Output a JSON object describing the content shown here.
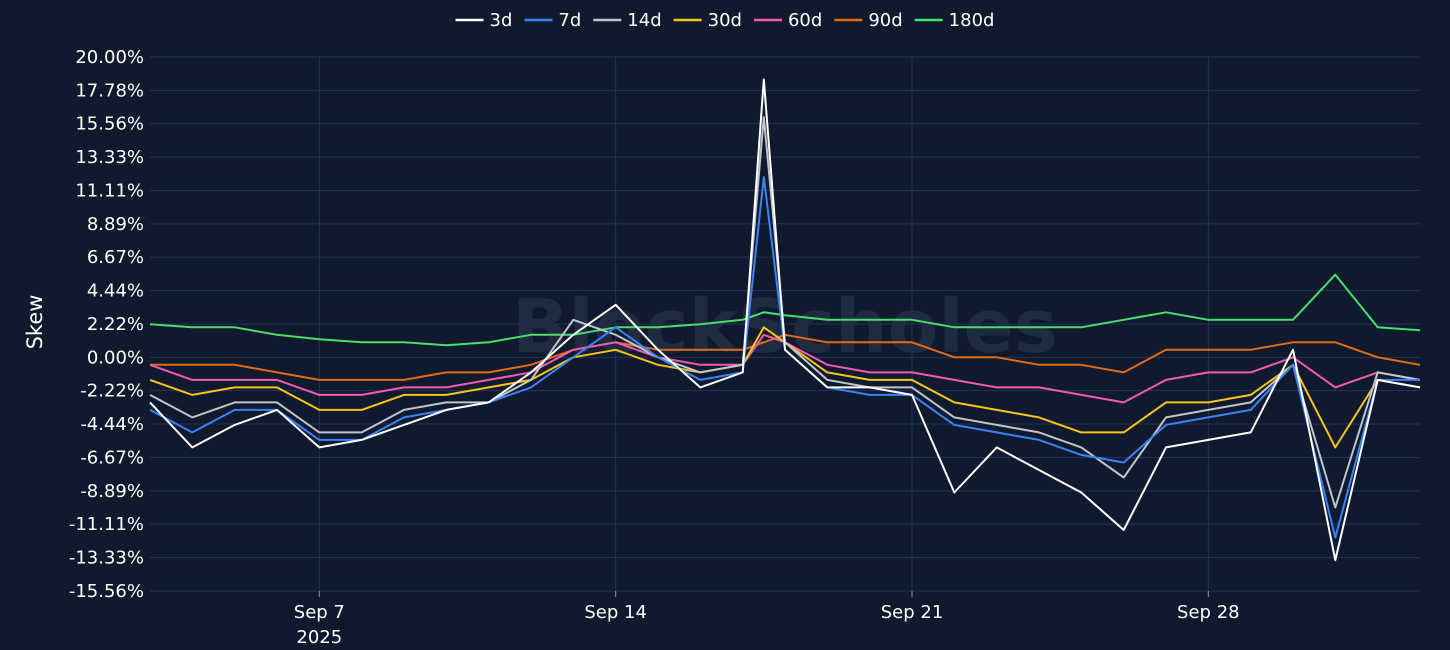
{
  "chart_data": {
    "type": "line",
    "title": "",
    "xlabel": "",
    "ylabel": "Skew",
    "watermark": "BlockScholes",
    "x_range": [
      "2025-09-03",
      "2025-10-03"
    ],
    "ylim": [
      -15.56,
      20.0
    ],
    "y_ticks": [
      "20.00%",
      "17.78%",
      "15.56%",
      "13.33%",
      "11.11%",
      "8.89%",
      "6.67%",
      "4.44%",
      "2.22%",
      "0.00%",
      "-2.22%",
      "-4.44%",
      "-6.67%",
      "-8.89%",
      "-11.11%",
      "-13.33%",
      "-15.56%"
    ],
    "x_ticks": [
      {
        "date": "2025-09-07",
        "label": "Sep 7",
        "sublabel": "2025"
      },
      {
        "date": "2025-09-14",
        "label": "Sep 14",
        "sublabel": ""
      },
      {
        "date": "2025-09-21",
        "label": "Sep 21",
        "sublabel": ""
      },
      {
        "date": "2025-09-28",
        "label": "Sep 28",
        "sublabel": ""
      }
    ],
    "grid": true,
    "legend_position": "top-center",
    "series": [
      {
        "name": "3d",
        "color": "#ffffff",
        "x": [
          "2025-09-03",
          "2025-09-04",
          "2025-09-05",
          "2025-09-06",
          "2025-09-07",
          "2025-09-08",
          "2025-09-09",
          "2025-09-10",
          "2025-09-11",
          "2025-09-12",
          "2025-09-13",
          "2025-09-14",
          "2025-09-15",
          "2025-09-16",
          "2025-09-17",
          "2025-09-17T12:00",
          "2025-09-18",
          "2025-09-19",
          "2025-09-20",
          "2025-09-21",
          "2025-09-22",
          "2025-09-23",
          "2025-09-24",
          "2025-09-25",
          "2025-09-26",
          "2025-09-27",
          "2025-09-28",
          "2025-09-29",
          "2025-09-30",
          "2025-10-01",
          "2025-10-02",
          "2025-10-03"
        ],
        "values": [
          -3.0,
          -6.0,
          -4.5,
          -3.5,
          -6.0,
          -5.5,
          -4.5,
          -3.5,
          -3.0,
          -1.0,
          1.5,
          3.5,
          0.5,
          -2.0,
          -1.0,
          18.5,
          0.5,
          -2.0,
          -2.0,
          -2.5,
          -9.0,
          -6.0,
          -7.5,
          -9.0,
          -11.5,
          -6.0,
          -5.5,
          -5.0,
          0.5,
          -13.5,
          -1.5,
          -2.0
        ]
      },
      {
        "name": "7d",
        "color": "#3b82f6",
        "x": [
          "2025-09-03",
          "2025-09-04",
          "2025-09-05",
          "2025-09-06",
          "2025-09-07",
          "2025-09-08",
          "2025-09-09",
          "2025-09-10",
          "2025-09-11",
          "2025-09-12",
          "2025-09-13",
          "2025-09-14",
          "2025-09-15",
          "2025-09-16",
          "2025-09-17",
          "2025-09-17T12:00",
          "2025-09-18",
          "2025-09-19",
          "2025-09-20",
          "2025-09-21",
          "2025-09-22",
          "2025-09-23",
          "2025-09-24",
          "2025-09-25",
          "2025-09-26",
          "2025-09-27",
          "2025-09-28",
          "2025-09-29",
          "2025-09-30",
          "2025-10-01",
          "2025-10-02",
          "2025-10-03"
        ],
        "values": [
          -3.5,
          -5.0,
          -3.5,
          -3.5,
          -5.5,
          -5.5,
          -4.0,
          -3.5,
          -3.0,
          -2.0,
          0.0,
          2.0,
          0.0,
          -1.5,
          -1.0,
          12.0,
          0.5,
          -2.0,
          -2.5,
          -2.5,
          -4.5,
          -5.0,
          -5.5,
          -6.5,
          -7.0,
          -4.5,
          -4.0,
          -3.5,
          -0.5,
          -12.0,
          -1.5,
          -1.5
        ]
      },
      {
        "name": "14d",
        "color": "#c0c4cc",
        "x": [
          "2025-09-03",
          "2025-09-04",
          "2025-09-05",
          "2025-09-06",
          "2025-09-07",
          "2025-09-08",
          "2025-09-09",
          "2025-09-10",
          "2025-09-11",
          "2025-09-12",
          "2025-09-13",
          "2025-09-14",
          "2025-09-15",
          "2025-09-16",
          "2025-09-17",
          "2025-09-17T12:00",
          "2025-09-18",
          "2025-09-19",
          "2025-09-20",
          "2025-09-21",
          "2025-09-22",
          "2025-09-23",
          "2025-09-24",
          "2025-09-25",
          "2025-09-26",
          "2025-09-27",
          "2025-09-28",
          "2025-09-29",
          "2025-09-30",
          "2025-10-01",
          "2025-10-02",
          "2025-10-03"
        ],
        "values": [
          -2.5,
          -4.0,
          -3.0,
          -3.0,
          -5.0,
          -5.0,
          -3.5,
          -3.0,
          -3.0,
          -1.5,
          2.5,
          1.5,
          0.0,
          -1.0,
          -0.5,
          16.0,
          1.0,
          -1.5,
          -2.0,
          -2.0,
          -4.0,
          -4.5,
          -5.0,
          -6.0,
          -8.0,
          -4.0,
          -3.5,
          -3.0,
          -0.5,
          -10.0,
          -1.0,
          -1.5
        ]
      },
      {
        "name": "30d",
        "color": "#f5c518",
        "x": [
          "2025-09-03",
          "2025-09-04",
          "2025-09-05",
          "2025-09-06",
          "2025-09-07",
          "2025-09-08",
          "2025-09-09",
          "2025-09-10",
          "2025-09-11",
          "2025-09-12",
          "2025-09-13",
          "2025-09-14",
          "2025-09-15",
          "2025-09-16",
          "2025-09-17",
          "2025-09-17T12:00",
          "2025-09-18",
          "2025-09-19",
          "2025-09-20",
          "2025-09-21",
          "2025-09-22",
          "2025-09-23",
          "2025-09-24",
          "2025-09-25",
          "2025-09-26",
          "2025-09-27",
          "2025-09-28",
          "2025-09-29",
          "2025-09-30",
          "2025-10-01",
          "2025-10-02",
          "2025-10-03"
        ],
        "values": [
          -1.5,
          -2.5,
          -2.0,
          -2.0,
          -3.5,
          -3.5,
          -2.5,
          -2.5,
          -2.0,
          -1.5,
          0.0,
          0.5,
          -0.5,
          -1.0,
          -0.5,
          2.0,
          1.0,
          -1.0,
          -1.5,
          -1.5,
          -3.0,
          -3.5,
          -4.0,
          -5.0,
          -5.0,
          -3.0,
          -3.0,
          -2.5,
          -0.5,
          -6.0,
          -1.5,
          -2.0
        ]
      },
      {
        "name": "60d",
        "color": "#f25ab4",
        "x": [
          "2025-09-03",
          "2025-09-04",
          "2025-09-05",
          "2025-09-06",
          "2025-09-07",
          "2025-09-08",
          "2025-09-09",
          "2025-09-10",
          "2025-09-11",
          "2025-09-12",
          "2025-09-13",
          "2025-09-14",
          "2025-09-15",
          "2025-09-16",
          "2025-09-17",
          "2025-09-17T12:00",
          "2025-09-18",
          "2025-09-19",
          "2025-09-20",
          "2025-09-21",
          "2025-09-22",
          "2025-09-23",
          "2025-09-24",
          "2025-09-25",
          "2025-09-26",
          "2025-09-27",
          "2025-09-28",
          "2025-09-29",
          "2025-09-30",
          "2025-10-01",
          "2025-10-02",
          "2025-10-03"
        ],
        "values": [
          -0.5,
          -1.5,
          -1.5,
          -1.5,
          -2.5,
          -2.5,
          -2.0,
          -2.0,
          -1.5,
          -1.0,
          0.5,
          1.0,
          0.0,
          -0.5,
          -0.5,
          1.5,
          1.0,
          -0.5,
          -1.0,
          -1.0,
          -1.5,
          -2.0,
          -2.0,
          -2.5,
          -3.0,
          -1.5,
          -1.0,
          -1.0,
          0.0,
          -2.0,
          -1.0,
          -1.5
        ]
      },
      {
        "name": "90d",
        "color": "#e36b14",
        "x": [
          "2025-09-03",
          "2025-09-04",
          "2025-09-05",
          "2025-09-06",
          "2025-09-07",
          "2025-09-08",
          "2025-09-09",
          "2025-09-10",
          "2025-09-11",
          "2025-09-12",
          "2025-09-13",
          "2025-09-14",
          "2025-09-15",
          "2025-09-16",
          "2025-09-17",
          "2025-09-17T12:00",
          "2025-09-18",
          "2025-09-19",
          "2025-09-20",
          "2025-09-21",
          "2025-09-22",
          "2025-09-23",
          "2025-09-24",
          "2025-09-25",
          "2025-09-26",
          "2025-09-27",
          "2025-09-28",
          "2025-09-29",
          "2025-09-30",
          "2025-10-01",
          "2025-10-02",
          "2025-10-03"
        ],
        "values": [
          -0.5,
          -0.5,
          -0.5,
          -1.0,
          -1.5,
          -1.5,
          -1.5,
          -1.0,
          -1.0,
          -0.5,
          0.5,
          1.0,
          0.5,
          0.5,
          0.5,
          1.0,
          1.5,
          1.0,
          1.0,
          1.0,
          0.0,
          0.0,
          -0.5,
          -0.5,
          -1.0,
          0.5,
          0.5,
          0.5,
          1.0,
          1.0,
          0.0,
          -0.5
        ]
      },
      {
        "name": "180d",
        "color": "#4ade6a",
        "x": [
          "2025-09-03",
          "2025-09-04",
          "2025-09-05",
          "2025-09-06",
          "2025-09-07",
          "2025-09-08",
          "2025-09-09",
          "2025-09-10",
          "2025-09-11",
          "2025-09-12",
          "2025-09-13",
          "2025-09-14",
          "2025-09-15",
          "2025-09-16",
          "2025-09-17",
          "2025-09-17T12:00",
          "2025-09-18",
          "2025-09-19",
          "2025-09-20",
          "2025-09-21",
          "2025-09-22",
          "2025-09-23",
          "2025-09-24",
          "2025-09-25",
          "2025-09-26",
          "2025-09-27",
          "2025-09-28",
          "2025-09-29",
          "2025-09-30",
          "2025-10-01",
          "2025-10-02",
          "2025-10-03"
        ],
        "values": [
          2.2,
          2.0,
          2.0,
          1.5,
          1.2,
          1.0,
          1.0,
          0.8,
          1.0,
          1.5,
          1.5,
          2.0,
          2.0,
          2.2,
          2.5,
          3.0,
          2.8,
          2.5,
          2.5,
          2.5,
          2.0,
          2.0,
          2.0,
          2.0,
          2.5,
          3.0,
          2.5,
          2.5,
          2.5,
          5.5,
          2.0,
          1.8
        ]
      }
    ]
  }
}
